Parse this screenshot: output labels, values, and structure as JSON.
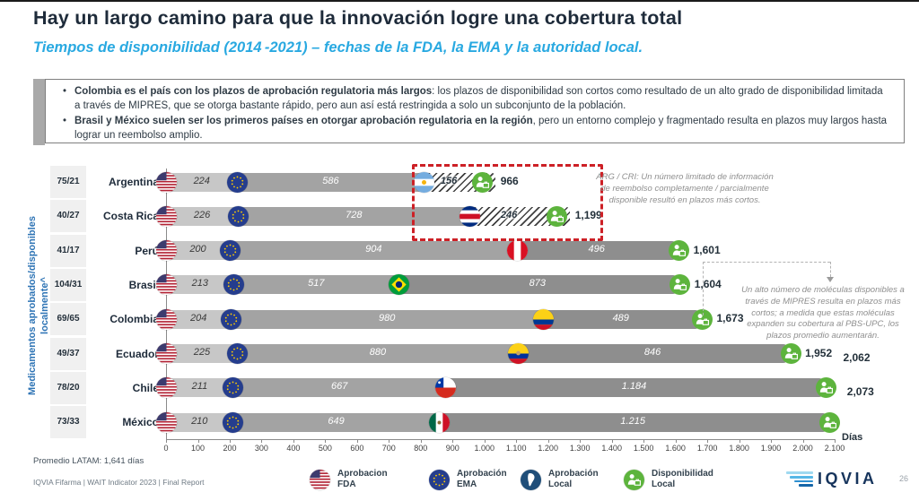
{
  "title": "Hay un largo camino para que la innovación logre una cobertura total",
  "subtitle": "Tiempos de disponibilidad (2014 -2021) – fechas de la FDA, la EMA y la autoridad local.",
  "callout": {
    "bullets": [
      {
        "bold": "Colombia es el país con los plazos de aprobación regulatoria más largos",
        "rest": ": los plazos de disponibilidad son cortos como resultado de un alto grado de disponibilidad limitada a través de MIPRES, que se otorga bastante rápido, pero aun así está restringida a solo un subconjunto de la población."
      },
      {
        "bold": "Brasil y México suelen ser los primeros países en otorgar aprobación regulatoria en la región",
        "rest": ", pero un entorno complejo y fragmentado resulta en plazos muy largos hasta lograr un reembolso amplio."
      }
    ]
  },
  "sidebar_label": "Medicamentos aprobados/disponibles localmente^",
  "chart_data": {
    "type": "bar",
    "stacked": true,
    "xlabel": "Días",
    "xlim": [
      0,
      2100
    ],
    "axis_ticks": [
      "0",
      "100",
      "200",
      "300",
      "400",
      "500",
      "600",
      "700",
      "800",
      "900",
      "1.000",
      "1.100",
      "1.200",
      "1.300",
      "1.400",
      "1.500",
      "1.600",
      "1.700",
      "1.800",
      "1.900",
      "2.000",
      "2.100"
    ],
    "series_names": [
      "Aprobación FDA",
      "Aprobación EMA",
      "Aprobación Local",
      "Disponibilidad Local"
    ],
    "rows": [
      {
        "country": "Argentina",
        "ratio": "75/21",
        "flag": "argentina",
        "fda": 224,
        "ema": 586,
        "local": 156,
        "fda_label": "224",
        "ema_label": "586",
        "local_label": "156",
        "total": "966",
        "hatched": true
      },
      {
        "country": "Costa Rica",
        "ratio": "40/27",
        "flag": "costarica",
        "fda": 226,
        "ema": 728,
        "local": 246,
        "fda_label": "226",
        "ema_label": "728",
        "local_label": "246",
        "total": "1,199",
        "hatched": true
      },
      {
        "country": "Perú",
        "ratio": "41/17",
        "flag": "peru",
        "fda": 200,
        "ema": 904,
        "local": 496,
        "fda_label": "200",
        "ema_label": "904",
        "local_label": "496",
        "total": "1,601",
        "hatched": false
      },
      {
        "country": "Brasil",
        "ratio": "104/31",
        "flag": "brasil",
        "fda": 213,
        "ema": 517,
        "local": 873,
        "fda_label": "213",
        "ema_label": "517",
        "local_label": "873",
        "total": "1,604",
        "hatched": false
      },
      {
        "country": "Colombia",
        "ratio": "69/65",
        "flag": "colombia",
        "fda": 204,
        "ema": 980,
        "local": 489,
        "fda_label": "204",
        "ema_label": "980",
        "local_label": "489",
        "total": "1,673",
        "hatched": false
      },
      {
        "country": "Ecuador",
        "ratio": "49/37",
        "flag": "ecuador",
        "fda": 225,
        "ema": 880,
        "local": 846,
        "fda_label": "225",
        "ema_label": "880",
        "local_label": "846",
        "total": "1,952",
        "hatched": false
      },
      {
        "country": "Chile",
        "ratio": "78/20",
        "flag": "chile",
        "fda": 211,
        "ema": 667,
        "local": 1184,
        "fda_label": "211",
        "ema_label": "667",
        "local_label": "1.184",
        "total": "2,062",
        "hatched": false,
        "total_offset": "up"
      },
      {
        "country": "México",
        "ratio": "73/33",
        "flag": "mexico",
        "fda": 210,
        "ema": 649,
        "local": 1215,
        "fda_label": "210",
        "ema_label": "649",
        "local_label": "1.215",
        "total": "2,073",
        "hatched": false,
        "total_offset": "up"
      }
    ]
  },
  "annotations": {
    "arg_cri": "ARG / CRI: Un número limitado de información de reembolso completamente / parcialmente disponible resultó en plazos más cortos.",
    "mipres": "Un alto número de moléculas disponibles a través de MIPRES resulta en plazos más cortos; a medida que estas moléculas expanden su cobertura al PBS-UPC, los plazos promedio aumentarán."
  },
  "legend": [
    {
      "icon": "us-flag",
      "label": "Aprobacion\nFDA"
    },
    {
      "icon": "eu-flag",
      "label": "Aprobación\nEMA"
    },
    {
      "icon": "local-approval",
      "label": "Aprobación\nLocal"
    },
    {
      "icon": "availability",
      "label": "Disponibilidad\nLocal"
    }
  ],
  "stats": {
    "promedio": "Promedio  LATAM: 1,641 días"
  },
  "footer": {
    "source": "IQVIA Fifarma | WAIT Indicator 2023 | Final Report",
    "page": "26",
    "brand": "IQVIA"
  },
  "colors": {
    "fda_bar": "#c7c7c7",
    "ema_bar": "#a3a3a3",
    "local_bar": "#8e8e8e",
    "availability_green": "#5db43d",
    "highlight_red": "#cd2026",
    "accent_blue": "#29a9e1",
    "navy": "#1e2b3a",
    "sidebar_blue": "#2e74b5"
  }
}
